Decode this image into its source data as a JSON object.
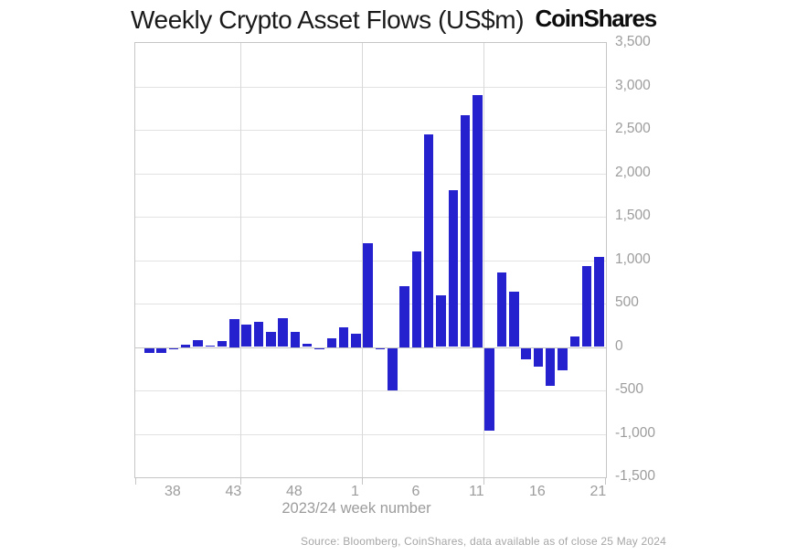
{
  "header": {
    "title": "Weekly Crypto Asset Flows (US$m)",
    "brand": "CoinShares"
  },
  "footer": {
    "source": "Source: Bloomberg, CoinShares, data available as of close 25 May 2024"
  },
  "colors": {
    "bar": "#2621ce",
    "gridline": "#e2e2e2",
    "zero_line": "#c6c6c6",
    "axis_border": "#c6c6c6",
    "tick_label": "#9c9c9c",
    "title_text": "#1a1a1a",
    "source_text": "#a6a6a6",
    "background": "#ffffff"
  },
  "chart_data": {
    "type": "bar",
    "title": "Weekly Crypto Asset Flows (US$m)",
    "xlabel": "2023/24 week number",
    "ylabel": "",
    "ylim": [
      -1500,
      3500
    ],
    "y_tick_step": 500,
    "y_tick_labels": [
      "3,500",
      "3,000",
      "2,500",
      "2,000",
      "1,500",
      "1,000",
      "500",
      "0",
      "-500",
      "-1,000",
      "-1,500"
    ],
    "x_tick_labels": [
      "38",
      "43",
      "48",
      "1",
      "6",
      "11",
      "16",
      "21"
    ],
    "v_gridlines_after": [
      "43",
      "1",
      "11"
    ],
    "grid": true,
    "legend": false,
    "categories": [
      "36",
      "37",
      "38",
      "39",
      "40",
      "41",
      "42",
      "43",
      "44",
      "45",
      "46",
      "47",
      "48",
      "49",
      "50",
      "51",
      "52",
      "1",
      "2",
      "3",
      "4",
      "5",
      "6",
      "7",
      "8",
      "9",
      "10",
      "11",
      "12",
      "13",
      "14",
      "15",
      "16",
      "17",
      "18",
      "19",
      "20",
      "21"
    ],
    "values": [
      -60,
      -55,
      -10,
      25,
      80,
      20,
      70,
      325,
      255,
      285,
      170,
      335,
      175,
      40,
      -15,
      100,
      225,
      150,
      1200,
      -20,
      -490,
      700,
      1100,
      2450,
      590,
      1810,
      2670,
      2900,
      -950,
      860,
      640,
      -135,
      -215,
      -440,
      -255,
      120,
      930,
      1040
    ]
  }
}
